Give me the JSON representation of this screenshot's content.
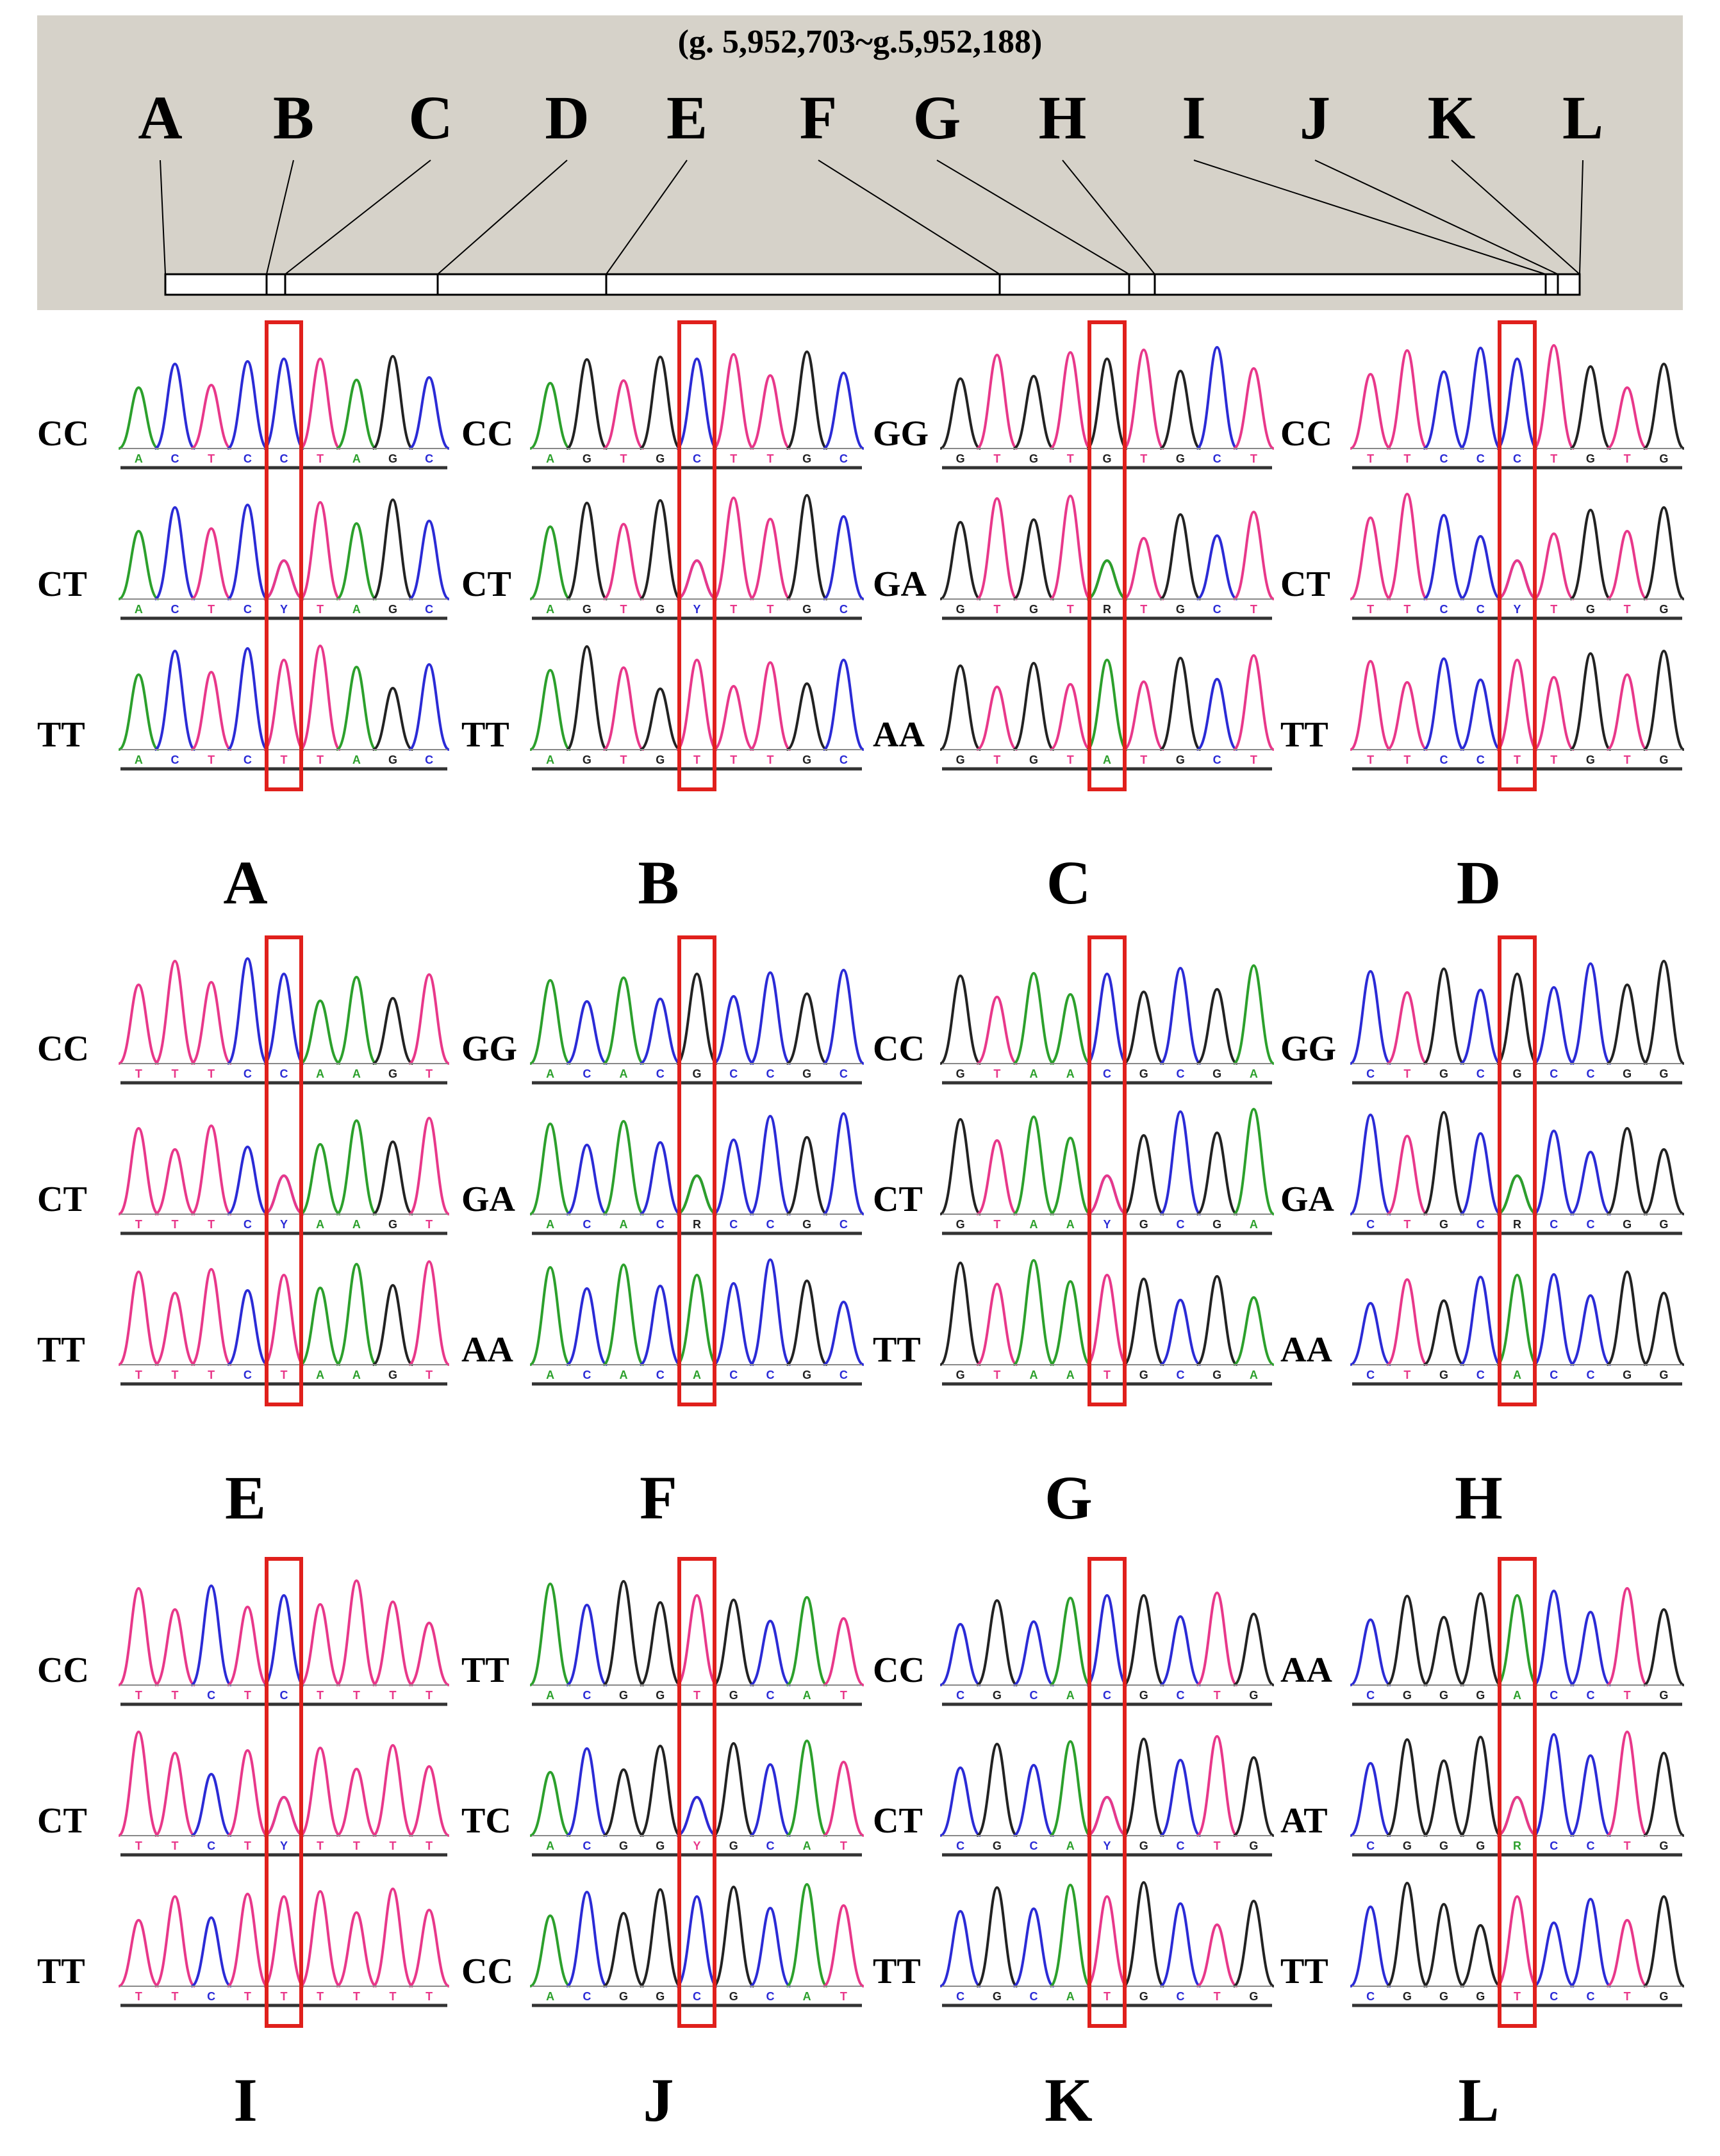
{
  "header": {
    "range_label": "(g. 5,952,703~g.5,952,188)",
    "sites": [
      "A",
      "B",
      "C",
      "D",
      "E",
      "F",
      "G",
      "H",
      "I",
      "J",
      "K",
      "L"
    ]
  },
  "colors": {
    "A": "#2ca02c",
    "C": "#2b2bd6",
    "G": "#222222",
    "T": "#e8388a",
    "highlight": "#e0201c",
    "header_bg": "#d6d2c9"
  },
  "panels": [
    {
      "letter": "A",
      "genotypes": [
        "CC",
        "CT",
        "TT"
      ],
      "seq": "ACTCCTAGC",
      "alleles": [
        "C",
        "C|T",
        "T"
      ]
    },
    {
      "letter": "B",
      "genotypes": [
        "CC",
        "CT",
        "TT"
      ],
      "seq": "AGTGCTTGC",
      "alleles": [
        "C",
        "C|T",
        "T"
      ]
    },
    {
      "letter": "C",
      "genotypes": [
        "GG",
        "GA",
        "AA"
      ],
      "seq": "GTGTGTGCT",
      "alleles": [
        "G",
        "G|A",
        "A"
      ]
    },
    {
      "letter": "D",
      "genotypes": [
        "CC",
        "CT",
        "TT"
      ],
      "seq": "TTCCCTGTG",
      "alleles": [
        "C",
        "C|T",
        "T"
      ]
    },
    {
      "letter": "E",
      "genotypes": [
        "CC",
        "CT",
        "TT"
      ],
      "seq": "TTTCCAAGT",
      "alleles": [
        "C",
        "C|T",
        "T"
      ]
    },
    {
      "letter": "F",
      "genotypes": [
        "GG",
        "GA",
        "AA"
      ],
      "seq": "ACACGCCGC",
      "alleles": [
        "G",
        "G|A",
        "A"
      ]
    },
    {
      "letter": "G",
      "genotypes": [
        "CC",
        "CT",
        "TT"
      ],
      "seq": "GTAACGCGA",
      "alleles": [
        "C",
        "C|T",
        "T"
      ]
    },
    {
      "letter": "H",
      "genotypes": [
        "GG",
        "GA",
        "AA"
      ],
      "seq": "CTGCGCCGG",
      "alleles": [
        "G",
        "G|A",
        "A"
      ]
    },
    {
      "letter": "I",
      "genotypes": [
        "CC",
        "CT",
        "TT"
      ],
      "seq": "TTCTCTTTT",
      "alleles": [
        "C",
        "C|T",
        "T"
      ]
    },
    {
      "letter": "J",
      "genotypes": [
        "TT",
        "TC",
        "CC"
      ],
      "seq": "ACGGTGCAT",
      "alleles": [
        "T",
        "T|C",
        "C"
      ]
    },
    {
      "letter": "K",
      "genotypes": [
        "CC",
        "CT",
        "TT"
      ],
      "seq": "CGCACGCTG",
      "alleles": [
        "C",
        "C|T",
        "T"
      ]
    },
    {
      "letter": "L",
      "genotypes": [
        "AA",
        "AT",
        "TT"
      ],
      "seq": "CGGGACCTG",
      "alleles": [
        "A",
        "A|T",
        "T"
      ]
    }
  ]
}
